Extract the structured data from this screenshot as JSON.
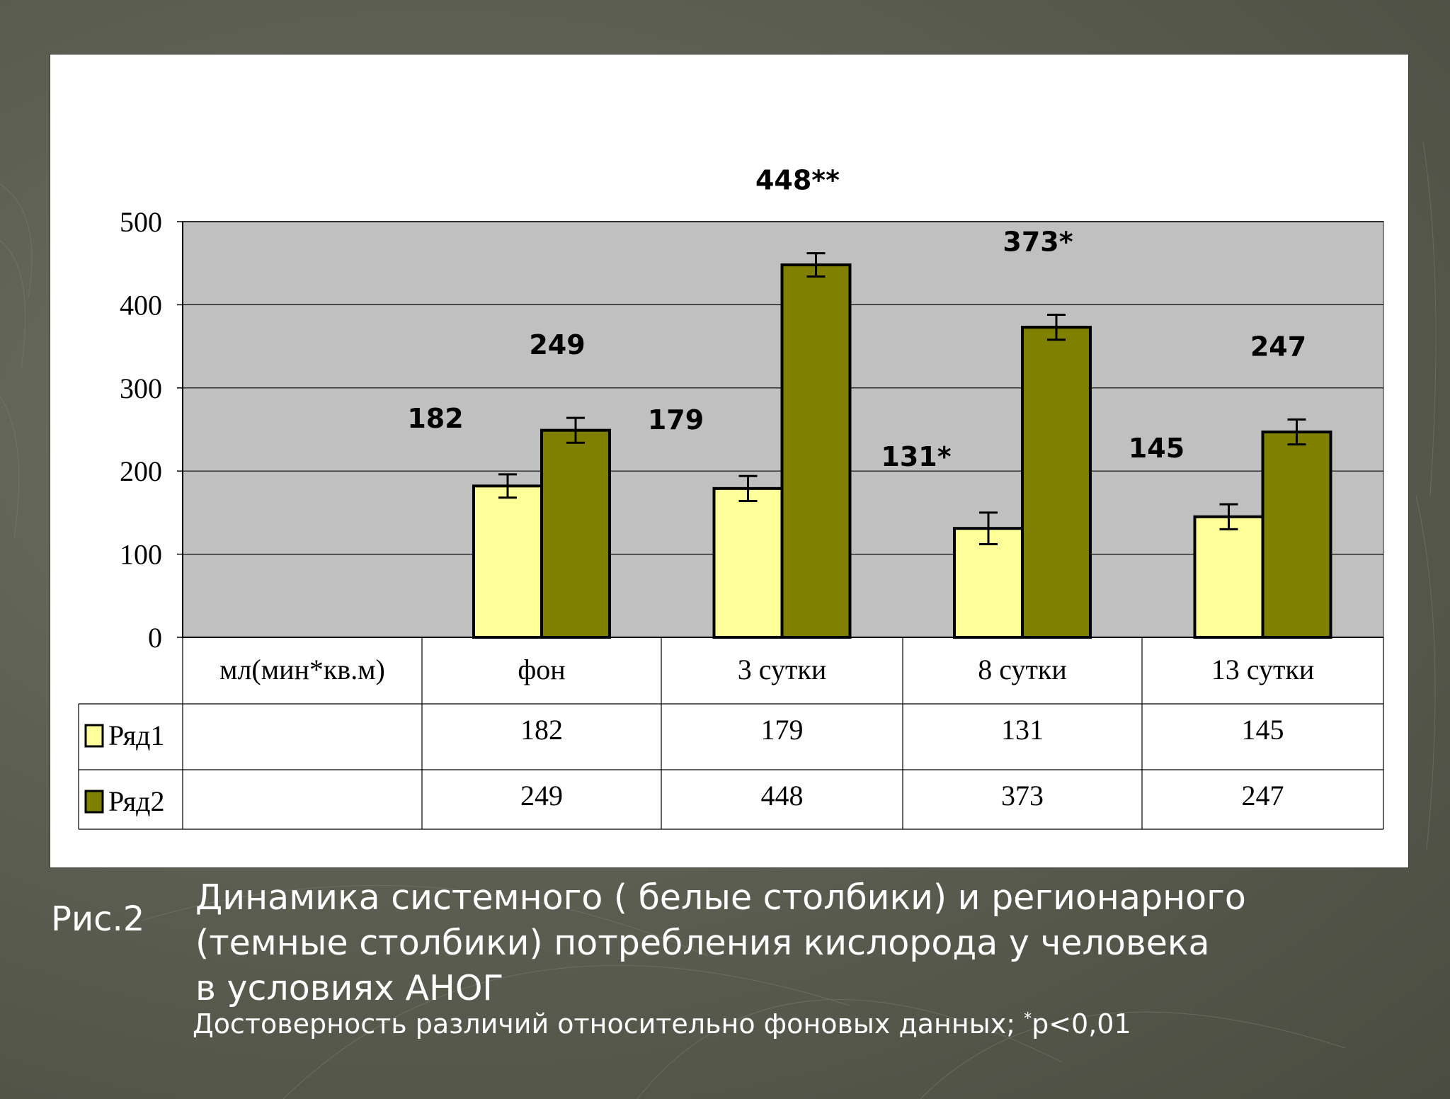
{
  "figure_label": "Рис.2",
  "caption_lines": [
    "Динамика системного ( белые столбики) и регионарного",
    "(темные столбики) потребления кислорода у человека",
    "в условиях АНОГ"
  ],
  "caption_note_prefix": "Достоверность различий относительно фоновых данных; ",
  "caption_note_star": "*",
  "caption_note_suffix": "p<0,01",
  "colors": {
    "series1": "#ffff99",
    "series2": "#808000",
    "plot_bg": "#c0c0c0",
    "panel_bg": "#ffffff"
  },
  "chart_data": {
    "type": "bar",
    "unit_label": "мл(мин*кв.м)",
    "categories": [
      "фон",
      "3 сутки",
      "8 сутки",
      "13 сутки"
    ],
    "series": [
      {
        "name": "Ряд1",
        "values": [
          182,
          179,
          131,
          145
        ],
        "errors": [
          14,
          15,
          19,
          15
        ],
        "labels": [
          "182",
          "179",
          "131*",
          "145"
        ]
      },
      {
        "name": "Ряд2",
        "values": [
          249,
          448,
          373,
          247
        ],
        "errors": [
          15,
          14,
          15,
          15
        ],
        "labels": [
          "249",
          "448**",
          "373*",
          "247"
        ]
      }
    ],
    "table": {
      "rows": [
        [
          "182",
          "179",
          "131",
          "145"
        ],
        [
          "249",
          "448",
          "373",
          "247"
        ]
      ]
    },
    "ylim": [
      0,
      500
    ],
    "yticks": [
      0,
      100,
      200,
      300,
      400,
      500
    ],
    "grid": true,
    "legend_position": "table-left"
  }
}
